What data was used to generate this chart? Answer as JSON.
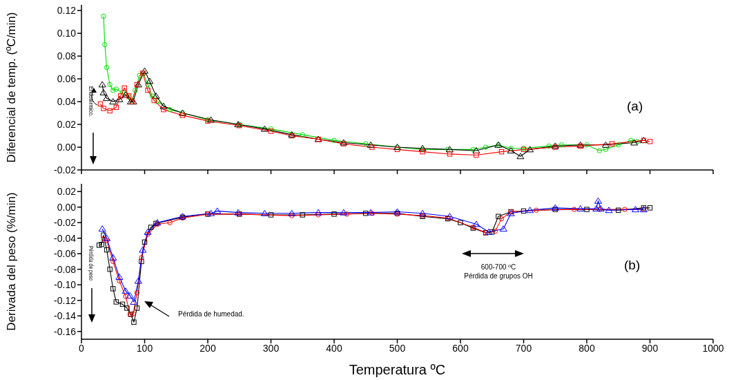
{
  "chart_data": [
    {
      "type": "line",
      "ylabel": "Diferencial de temp. (ºC/min)",
      "xlim": [
        0,
        1000
      ],
      "xticks": [
        0,
        100,
        200,
        300,
        400,
        500,
        600,
        700,
        800,
        900,
        1000
      ],
      "ylim": [
        -0.02,
        0.125
      ],
      "yticks": [
        {
          "value": -0.02,
          "label": "-0.02"
        },
        {
          "value": 0,
          "label": "0.00"
        },
        {
          "value": 0.02,
          "label": "0.02"
        },
        {
          "value": 0.04,
          "label": "0.04"
        },
        {
          "value": 0.06,
          "label": "0.06"
        },
        {
          "value": 0.08,
          "label": "0.08"
        },
        {
          "value": 0.1,
          "label": "0.10"
        },
        {
          "value": 0.12,
          "label": "0.12"
        }
      ],
      "tick_labels": "y",
      "grid": false,
      "annotations": [
        "Endotérmico.",
        "(a)"
      ],
      "series": [
        {
          "color": "#00dd00",
          "marker": "circle",
          "x": [
            35,
            37,
            40,
            45,
            50,
            55,
            65,
            75,
            80,
            85,
            92,
            98,
            105,
            112,
            120,
            140,
            160,
            200,
            250,
            300,
            350,
            400,
            450,
            500,
            540,
            580,
            620,
            640,
            660,
            680,
            700,
            740,
            760,
            800,
            820,
            830,
            850,
            870,
            880
          ],
          "values": [
            0.115,
            0.09,
            0.07,
            0.055,
            0.05,
            0.051,
            0.048,
            0.044,
            0.041,
            0.05,
            0.063,
            0.065,
            0.055,
            0.045,
            0.04,
            0.033,
            0.03,
            0.024,
            0.02,
            0.016,
            0.011,
            0.006,
            0.003,
            0,
            -0.002,
            -0.002,
            -0.002,
            0,
            0.002,
            -0.001,
            -0.001,
            0.001,
            0.002,
            0.002,
            -0.003,
            -0.002,
            0.002,
            0.006,
            0.005
          ]
        },
        {
          "color": "#000000",
          "marker": "triangle",
          "x": [
            33,
            35,
            40,
            50,
            60,
            70,
            78,
            82,
            90,
            100,
            108,
            118,
            130,
            160,
            205,
            248,
            290,
            333,
            375,
            415,
            458,
            500,
            540,
            583,
            625,
            660,
            680,
            695,
            710,
            750,
            790,
            830,
            875,
            890
          ],
          "values": [
            0.055,
            0.048,
            0.043,
            0.04,
            0.042,
            0.046,
            0.04,
            0.04,
            0.055,
            0.067,
            0.058,
            0.045,
            0.036,
            0.03,
            0.024,
            0.02,
            0.016,
            0.011,
            0.007,
            0.004,
            0.002,
            0,
            -0.001,
            -0.002,
            -0.003,
            0.002,
            -0.003,
            -0.008,
            -0.002,
            0.001,
            0.002,
            0.002,
            0.004,
            0.006
          ]
        },
        {
          "color": "#ff0000",
          "marker": "square",
          "x": [
            30,
            35,
            45,
            55,
            62,
            68,
            75,
            80,
            88,
            97,
            105,
            115,
            130,
            160,
            200,
            250,
            300,
            333,
            375,
            415,
            460,
            500,
            540,
            583,
            625,
            665,
            700,
            750,
            790,
            840,
            890,
            900
          ],
          "values": [
            0.038,
            0.034,
            0.032,
            0.035,
            0.045,
            0.052,
            0.045,
            0.04,
            0.055,
            0.065,
            0.05,
            0.041,
            0.033,
            0.028,
            0.023,
            0.019,
            0.014,
            0.01,
            0.007,
            0.003,
            0,
            -0.002,
            -0.004,
            -0.006,
            -0.007,
            -0.004,
            -0.002,
            0,
            0.001,
            0.003,
            0.006,
            0.005
          ]
        }
      ]
    },
    {
      "type": "line",
      "xlabel": "Temperatura ºC",
      "ylabel": "Derivada del peso (%/min)",
      "xlim": [
        0,
        1000
      ],
      "xticks": [
        0,
        100,
        200,
        300,
        400,
        500,
        600,
        700,
        800,
        900,
        1000
      ],
      "ylim": [
        -0.17,
        0.03
      ],
      "yticks": [
        {
          "value": -0.16,
          "label": "-0.16"
        },
        {
          "value": -0.14,
          "label": "-0.14"
        },
        {
          "value": -0.12,
          "label": "-0.12"
        },
        {
          "value": -0.1,
          "label": "-0.10"
        },
        {
          "value": -0.08,
          "label": "-0.08"
        },
        {
          "value": -0.06,
          "label": "-0.06"
        },
        {
          "value": -0.04,
          "label": "-0.04"
        },
        {
          "value": -0.02,
          "label": "-0.02"
        },
        {
          "value": 0,
          "label": "0.00"
        },
        {
          "value": 0.02,
          "label": "0.02"
        }
      ],
      "grid": false,
      "annotations": [
        "Pérdida de peso",
        "Pérdida de humedad.",
        "600-700 ºC",
        "Pérdida de grupos OH",
        "(b)"
      ],
      "series": [
        {
          "color": "#000000",
          "marker": "square",
          "x": [
            28,
            32,
            35,
            40,
            45,
            50,
            55,
            65,
            72,
            78,
            83,
            88,
            95,
            100,
            110,
            118,
            160,
            200,
            250,
            300,
            350,
            400,
            450,
            500,
            540,
            580,
            600,
            620,
            640,
            650,
            660,
            680,
            700,
            750,
            800,
            850,
            890,
            900
          ],
          "values": [
            -0.049,
            -0.048,
            -0.036,
            -0.055,
            -0.08,
            -0.105,
            -0.122,
            -0.125,
            -0.13,
            -0.138,
            -0.148,
            -0.13,
            -0.07,
            -0.045,
            -0.026,
            -0.021,
            -0.013,
            -0.009,
            -0.009,
            -0.01,
            -0.01,
            -0.009,
            -0.008,
            -0.008,
            -0.012,
            -0.015,
            -0.02,
            -0.027,
            -0.033,
            -0.032,
            -0.012,
            -0.006,
            -0.005,
            -0.003,
            -0.003,
            -0.004,
            -0.001,
            -0.001
          ]
        },
        {
          "color": "#ff0000",
          "marker": "circle",
          "x": [
            35,
            40,
            50,
            60,
            70,
            77,
            82,
            88,
            95,
            105,
            120,
            140,
            160,
            200,
            250,
            333,
            375,
            420,
            460,
            500,
            540,
            580,
            620,
            640,
            655,
            665,
            680,
            720,
            780,
            820,
            860,
            890
          ],
          "values": [
            -0.041,
            -0.043,
            -0.07,
            -0.095,
            -0.115,
            -0.138,
            -0.137,
            -0.11,
            -0.065,
            -0.035,
            -0.022,
            -0.02,
            -0.014,
            -0.009,
            -0.009,
            -0.011,
            -0.01,
            -0.009,
            -0.008,
            -0.009,
            -0.011,
            -0.014,
            -0.026,
            -0.033,
            -0.031,
            -0.015,
            -0.006,
            -0.004,
            -0.003,
            -0.003,
            -0.003,
            -0.003
          ]
        },
        {
          "color": "#0000ff",
          "marker": "triangle",
          "x": [
            33,
            40,
            50,
            60,
            70,
            77,
            83,
            90,
            97,
            105,
            120,
            160,
            205,
            215,
            248,
            290,
            333,
            375,
            415,
            458,
            500,
            540,
            583,
            625,
            645,
            668,
            680,
            710,
            750,
            790,
            815,
            818,
            822,
            835,
            877,
            890
          ],
          "values": [
            -0.028,
            -0.04,
            -0.065,
            -0.09,
            -0.108,
            -0.114,
            -0.122,
            -0.095,
            -0.055,
            -0.032,
            -0.02,
            -0.012,
            -0.008,
            -0.005,
            -0.007,
            -0.008,
            -0.008,
            -0.007,
            -0.007,
            -0.007,
            -0.006,
            -0.008,
            -0.012,
            -0.022,
            -0.032,
            -0.028,
            -0.008,
            -0.004,
            -0.001,
            -0.002,
            -0.002,
            0.008,
            -0.002,
            -0.004,
            -0.003,
            -0.003
          ]
        }
      ]
    }
  ]
}
